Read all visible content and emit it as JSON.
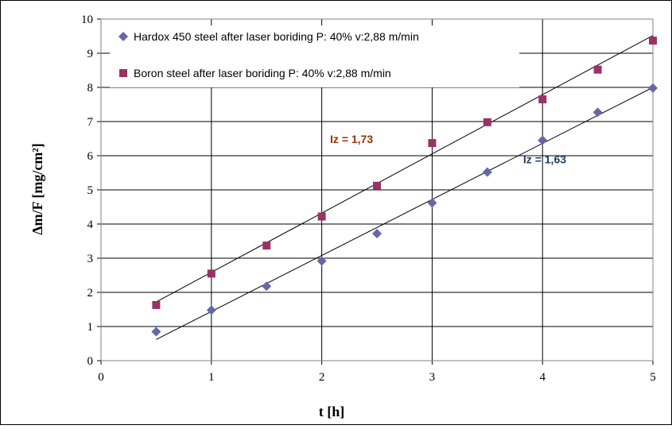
{
  "chart_data": {
    "type": "scatter",
    "xlabel": "t [h]",
    "ylabel": "Δm/F [mg/cm²]",
    "xlim": [
      0,
      5
    ],
    "ylim": [
      0,
      10
    ],
    "x_ticks": [
      "0",
      "1",
      "2",
      "3",
      "4",
      "5"
    ],
    "y_ticks": [
      "0",
      "1",
      "2",
      "3",
      "4",
      "5",
      "6",
      "7",
      "8",
      "9",
      "10"
    ],
    "grid": "both",
    "legend_position": "top-left",
    "series": [
      {
        "name": "Hardox 450 steel after laser boriding  P: 40% v:2,88 m/min",
        "marker": "diamond",
        "color": "#6666aa",
        "x": [
          0.5,
          1.0,
          1.5,
          2.0,
          2.5,
          3.0,
          3.5,
          4.0,
          4.5,
          5.0
        ],
        "y": [
          0.85,
          1.48,
          2.18,
          2.92,
          3.72,
          4.62,
          5.52,
          6.45,
          7.27,
          7.98
        ],
        "trendline": {
          "x": [
            0.5,
            5.0
          ],
          "y": [
            0.62,
            8.0
          ]
        },
        "annotation": "Iz = 1,63",
        "annotation_color": "#1f3d6b"
      },
      {
        "name": "Boron steel after laser boriding  P: 40% v:2,88 m/min",
        "marker": "square",
        "color": "#993366",
        "x": [
          0.5,
          1.0,
          1.5,
          2.0,
          2.5,
          3.0,
          3.5,
          4.0,
          4.5,
          5.0
        ],
        "y": [
          1.63,
          2.55,
          3.37,
          4.22,
          5.12,
          6.37,
          6.98,
          7.65,
          8.52,
          9.37
        ],
        "trendline": {
          "x": [
            0.5,
            5.0
          ],
          "y": [
            1.72,
            9.52
          ]
        },
        "annotation": "Iz = 1,73",
        "annotation_color": "#993300"
      }
    ]
  }
}
